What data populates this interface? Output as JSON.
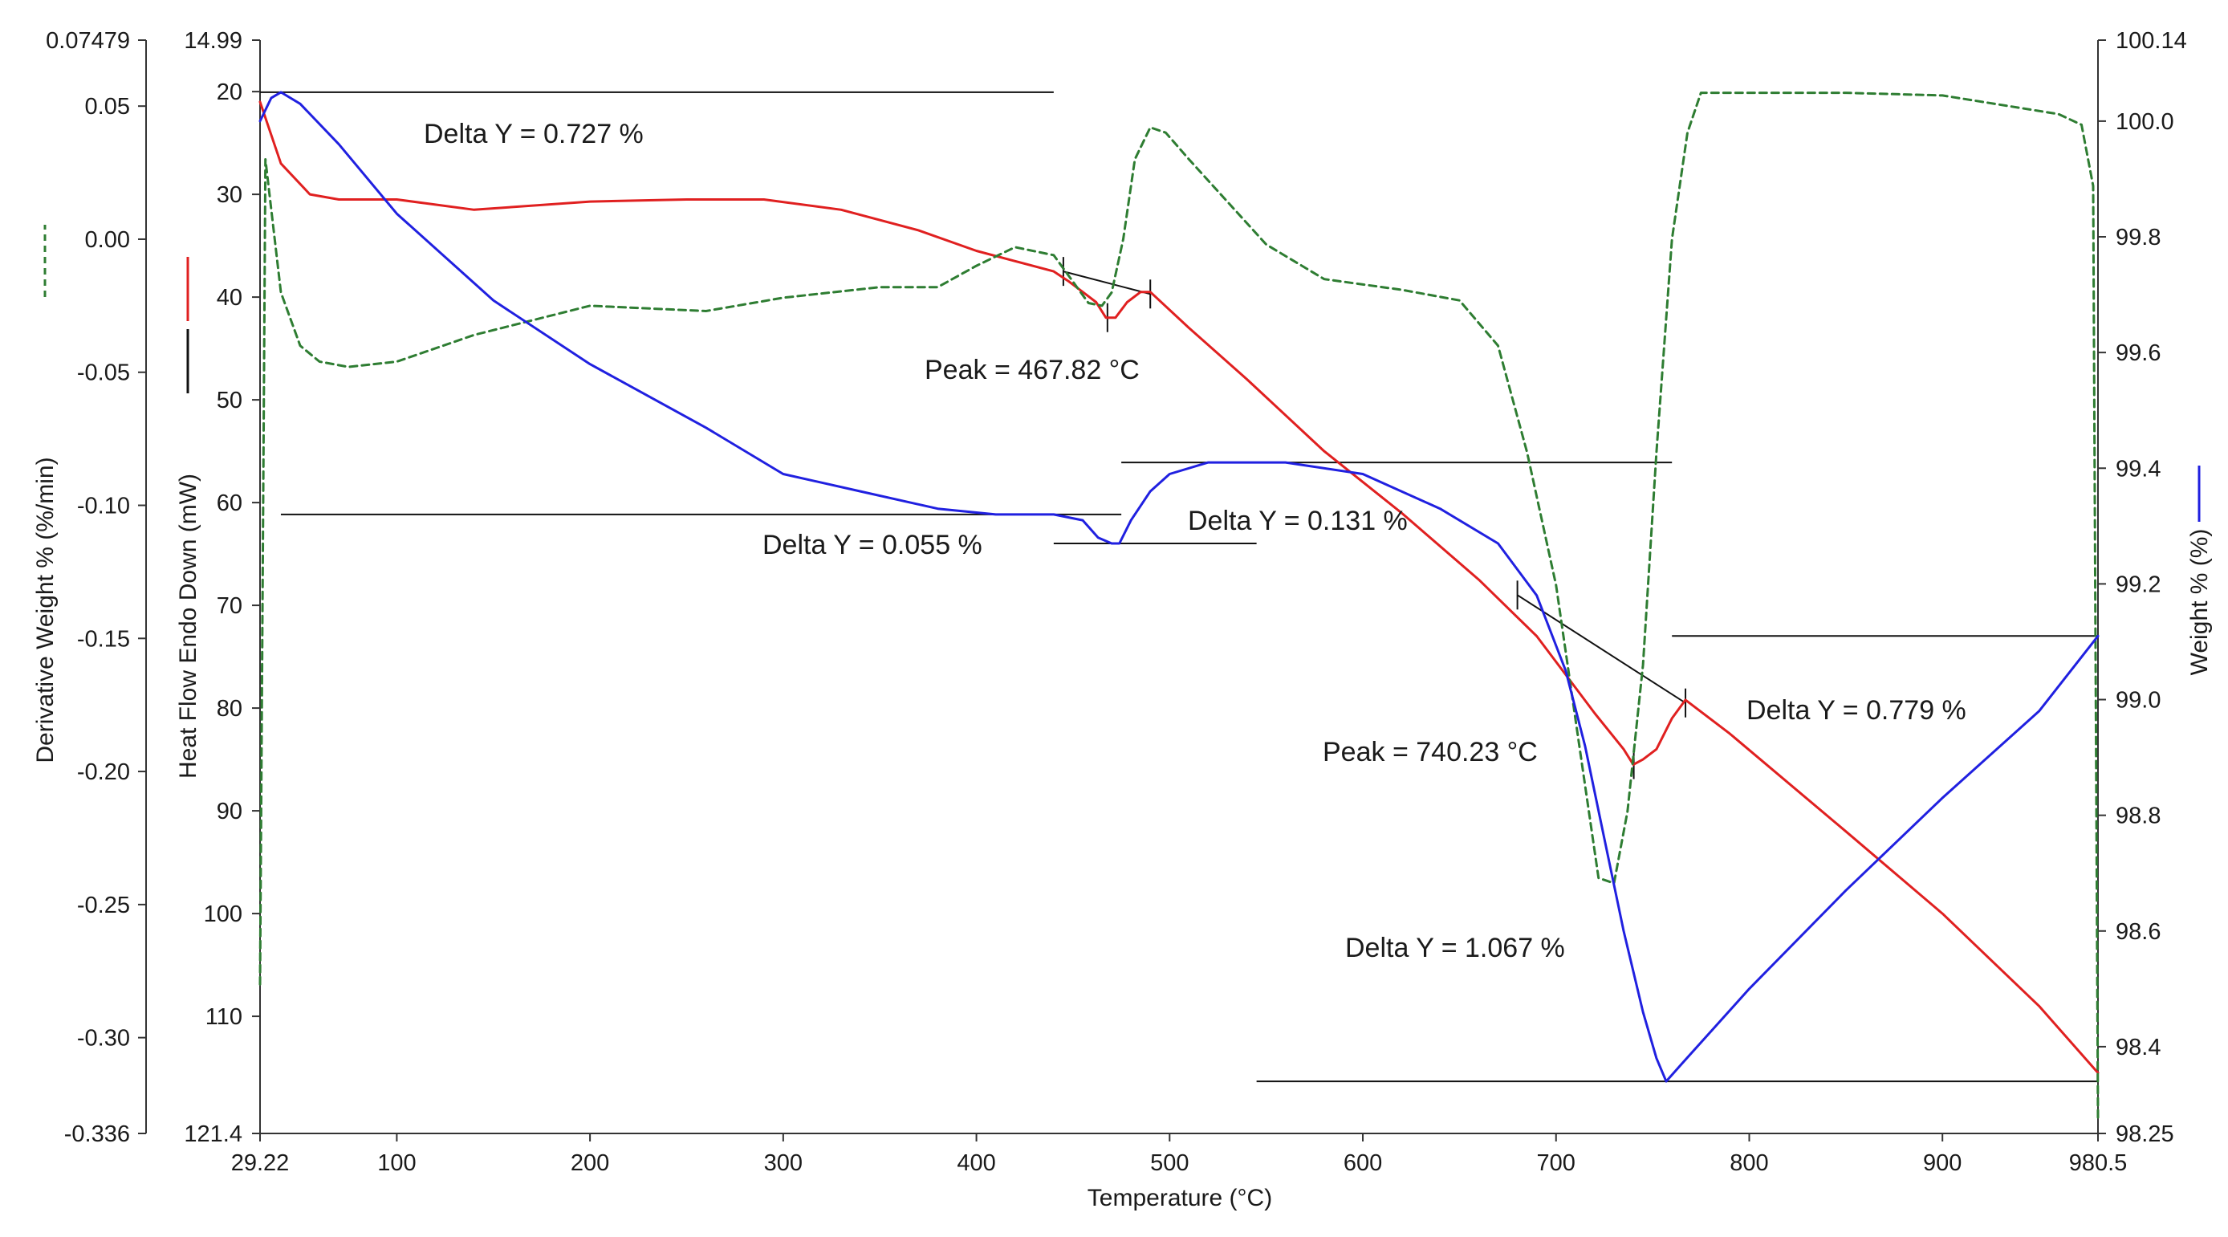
{
  "chart_data": {
    "type": "line",
    "title": "",
    "xlabel": "Temperature (°C)",
    "xlim": [
      29.22,
      980.5
    ],
    "x_ticks": [
      "29.22",
      "100",
      "200",
      "300",
      "400",
      "500",
      "600",
      "700",
      "800",
      "900",
      "980.5"
    ],
    "x_tick_values": [
      29.22,
      100,
      200,
      300,
      400,
      500,
      600,
      700,
      800,
      900,
      980.5
    ],
    "axes": {
      "derivative": {
        "label": "Derivative Weight % (%/min)",
        "range": [
          -0.336,
          0.07479
        ],
        "ticks": [
          "0.07479",
          "0.05",
          "0.00",
          "-0.05",
          "-0.10",
          "-0.15",
          "-0.20",
          "-0.25",
          "-0.30",
          "-0.336"
        ],
        "tick_values": [
          0.07479,
          0.05,
          0.0,
          -0.05,
          -0.1,
          -0.15,
          -0.2,
          -0.25,
          -0.3,
          -0.336
        ],
        "legend_color": "#2e7d32",
        "legend_style": "dashed"
      },
      "heat_flow": {
        "label": "Heat Flow Endo Down (mW)",
        "range": [
          121.4,
          14.99
        ],
        "ticks": [
          "14.99",
          "20",
          "30",
          "40",
          "50",
          "60",
          "70",
          "80",
          "90",
          "100",
          "110",
          "121.4"
        ],
        "tick_values": [
          14.99,
          20,
          30,
          40,
          50,
          60,
          70,
          80,
          90,
          100,
          110,
          121.4
        ],
        "legend_colors": [
          "#e02020",
          "#111111"
        ]
      },
      "weight": {
        "label": "Weight % (%)",
        "range": [
          98.25,
          100.14
        ],
        "ticks": [
          "100.14",
          "100.0",
          "99.8",
          "99.6",
          "99.4",
          "99.2",
          "99.0",
          "98.8",
          "98.6",
          "98.4",
          "98.25"
        ],
        "tick_values": [
          100.14,
          100.0,
          99.8,
          99.6,
          99.4,
          99.2,
          99.0,
          98.8,
          98.6,
          98.4,
          98.25
        ],
        "legend_color": "#2020e0"
      }
    },
    "series": [
      {
        "axis": "heat_flow",
        "color": "#e02020",
        "style": "solid",
        "x": [
          29.2,
          40,
          55,
          70,
          100,
          140,
          200,
          250,
          290,
          330,
          370,
          400,
          420,
          440,
          448,
          455,
          462,
          467,
          472,
          478,
          485,
          490,
          510,
          540,
          580,
          620,
          660,
          690,
          700,
          720,
          735,
          740,
          745,
          752,
          760,
          767,
          790,
          850,
          900,
          950,
          980.5
        ],
        "y": [
          21,
          27,
          30,
          30.5,
          30.5,
          31.5,
          30.7,
          30.5,
          30.5,
          31.5,
          33.5,
          35.5,
          36.5,
          37.5,
          38.5,
          39.5,
          40.5,
          42,
          42,
          40.5,
          39.5,
          39.5,
          43,
          48,
          55,
          61,
          67.5,
          73,
          75.5,
          80.5,
          84,
          85.5,
          85,
          84,
          81,
          79.2,
          82.5,
          92,
          100,
          109,
          115.5
        ]
      },
      {
        "axis": "derivative",
        "color": "#2e7d32",
        "style": "dashed",
        "x": [
          29.2,
          32,
          40,
          50,
          60,
          75,
          100,
          140,
          200,
          260,
          300,
          350,
          380,
          400,
          420,
          440,
          452,
          458,
          465,
          470,
          476,
          482,
          490,
          498,
          510,
          550,
          580,
          620,
          650,
          670,
          685,
          700,
          712,
          722,
          730,
          737,
          745,
          752,
          760,
          768,
          775,
          790,
          850,
          900,
          960,
          972,
          978,
          980.5
        ],
        "y": [
          -0.28,
          0.03,
          -0.02,
          -0.04,
          -0.046,
          -0.048,
          -0.046,
          -0.036,
          -0.025,
          -0.027,
          -0.022,
          -0.018,
          -0.018,
          -0.01,
          -0.003,
          -0.006,
          -0.018,
          -0.024,
          -0.025,
          -0.02,
          0.0,
          0.03,
          0.042,
          0.04,
          0.03,
          -0.002,
          -0.015,
          -0.019,
          -0.023,
          -0.04,
          -0.08,
          -0.13,
          -0.19,
          -0.24,
          -0.242,
          -0.215,
          -0.16,
          -0.08,
          0.0,
          0.04,
          0.055,
          0.055,
          0.055,
          0.054,
          0.047,
          0.043,
          0.02,
          -0.33
        ]
      },
      {
        "axis": "weight",
        "color": "#2020e0",
        "style": "solid",
        "x": [
          29.2,
          35,
          40,
          50,
          70,
          100,
          150,
          200,
          260,
          300,
          340,
          380,
          410,
          440,
          455,
          463,
          470,
          474,
          480,
          490,
          500,
          520,
          545,
          560,
          600,
          640,
          670,
          690,
          705,
          715,
          725,
          735,
          745,
          752,
          757,
          765,
          800,
          850,
          900,
          950,
          980.5
        ],
        "y": [
          100.0,
          100.04,
          100.05,
          100.03,
          99.96,
          99.84,
          99.69,
          99.58,
          99.47,
          99.39,
          99.36,
          99.33,
          99.32,
          99.32,
          99.31,
          99.28,
          99.27,
          99.27,
          99.31,
          99.36,
          99.39,
          99.41,
          99.41,
          99.41,
          99.39,
          99.33,
          99.27,
          99.18,
          99.05,
          98.92,
          98.76,
          98.6,
          98.46,
          98.38,
          98.34,
          98.37,
          98.5,
          98.67,
          98.83,
          98.98,
          99.11
        ]
      }
    ],
    "annotations": [
      {
        "text": "Delta Y = 0.727 %",
        "series": "weight",
        "ref_lines": [
          {
            "x": [
              29.22,
              440
            ],
            "y": 100.05
          }
        ]
      },
      {
        "text": "Delta Y = 0.055 %",
        "series": "weight",
        "ref_lines": [
          {
            "x": [
              40,
              475
            ],
            "y": 99.32
          },
          {
            "x": [
              440,
              545
            ],
            "y": 99.27
          }
        ]
      },
      {
        "text": "Delta Y = 0.131 %",
        "series": "weight",
        "ref_lines": [
          {
            "x": [
              475,
              760
            ],
            "y": 99.41
          }
        ]
      },
      {
        "text": "Delta Y = 1.067 %",
        "series": "weight",
        "ref_lines": [
          {
            "x": [
              545,
              980.5
            ],
            "y": 98.34
          }
        ]
      },
      {
        "text": "Delta Y = 0.779 %",
        "series": "weight",
        "ref_lines": [
          {
            "x": [
              760,
              980.5
            ],
            "y": 99.11
          }
        ]
      },
      {
        "text": "Peak = 467.82 °C",
        "series": "heat_flow",
        "peak_x": 467.82,
        "baseline": {
          "x": [
            445,
            490
          ],
          "y": [
            37.5,
            39.7
          ]
        }
      },
      {
        "text": "Peak = 740.23 °C",
        "series": "heat_flow",
        "peak_x": 740.23,
        "baseline": {
          "x": [
            680,
            767
          ],
          "y": [
            69,
            79.5
          ]
        }
      }
    ],
    "grid": false,
    "legend": "none"
  }
}
